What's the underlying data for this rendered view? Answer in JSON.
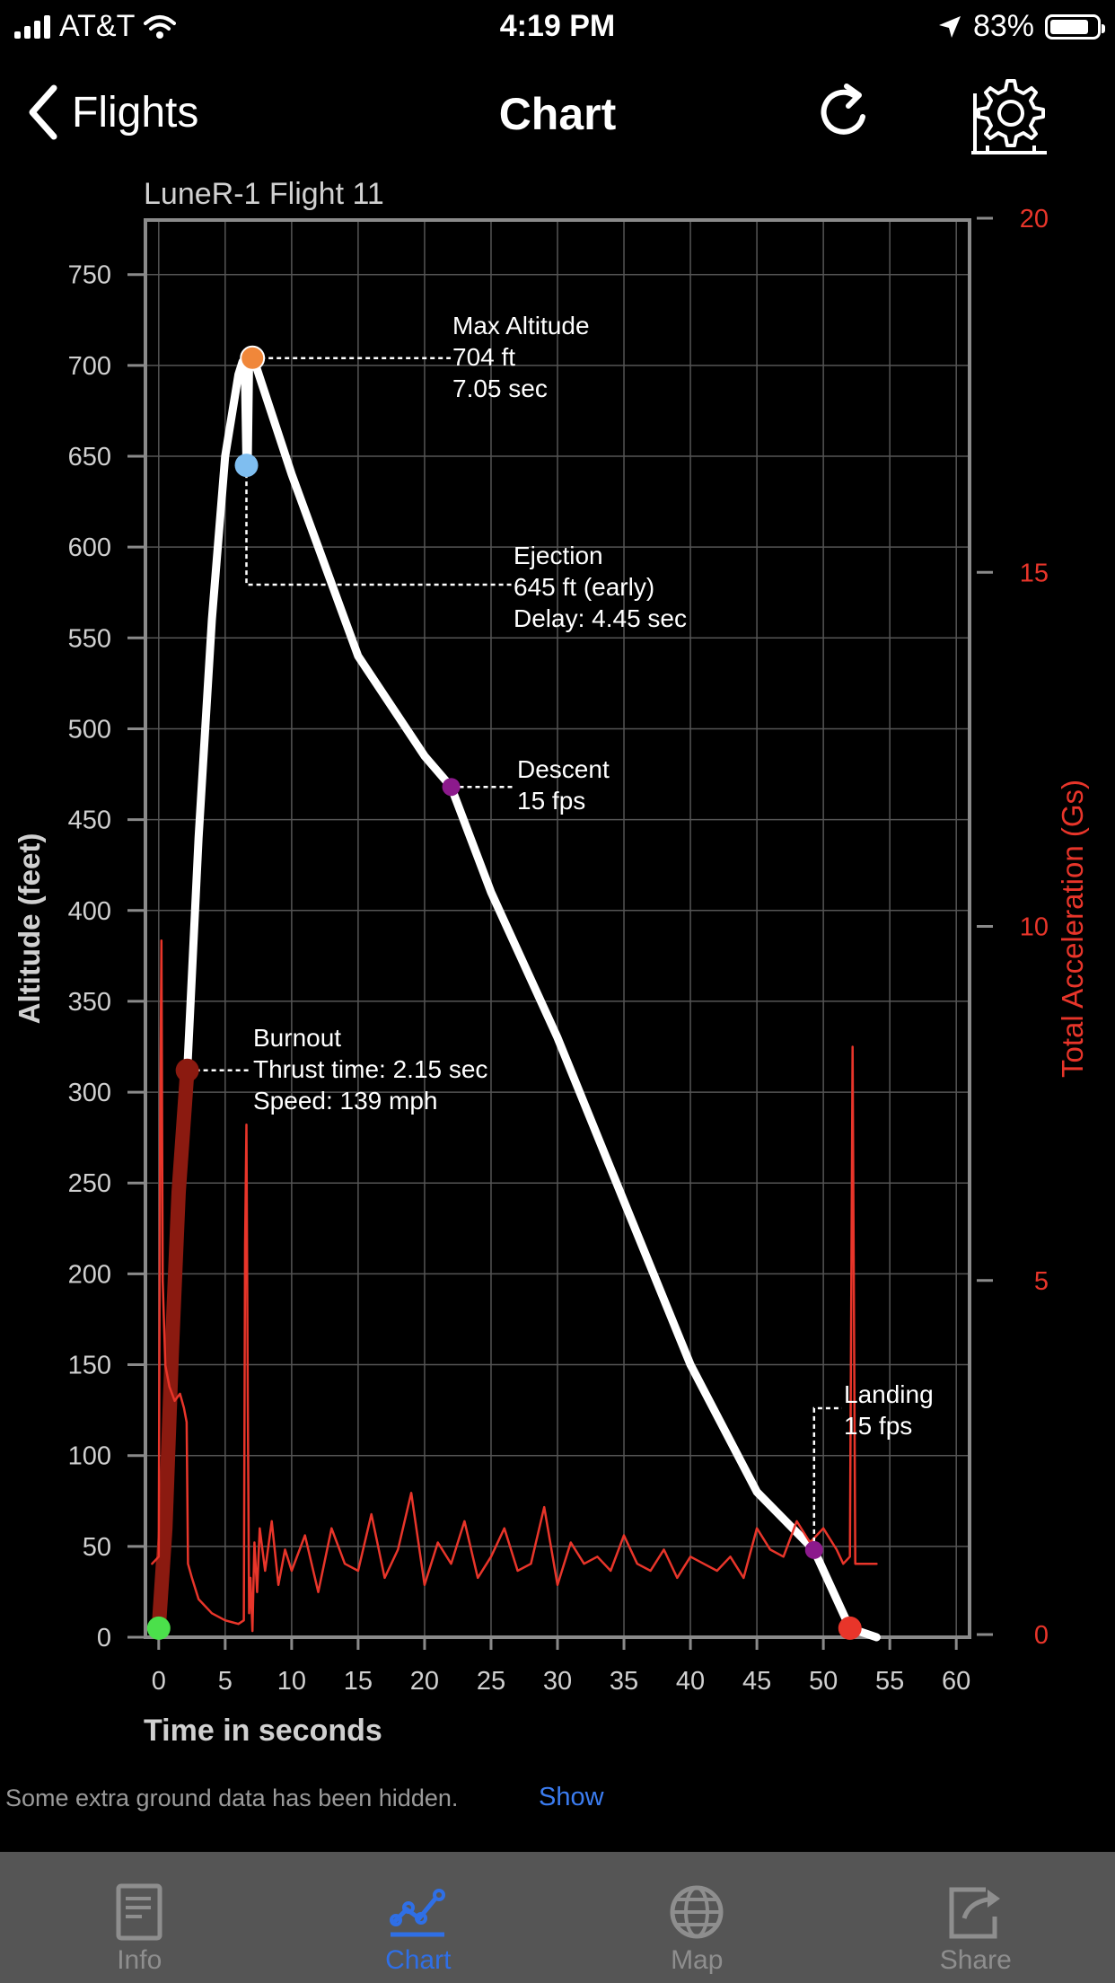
{
  "status_bar": {
    "carrier": "AT&T",
    "time": "4:19 PM",
    "battery": "83%",
    "battery_level": 0.83
  },
  "nav": {
    "back_label": "Flights",
    "title": "Chart"
  },
  "chart_data": {
    "type": "line",
    "title": "LuneR-1 Flight 11",
    "xlabel": "Time in seconds",
    "ylabel": "Altitude (feet)",
    "y2label": "Total Acceleration (Gs)",
    "xlim": [
      -1,
      61
    ],
    "ylim": [
      0,
      780
    ],
    "y2lim": [
      0,
      20
    ],
    "x_ticks": [
      0,
      5,
      10,
      15,
      20,
      25,
      30,
      35,
      40,
      45,
      50,
      55,
      60
    ],
    "y_ticks": [
      0,
      50,
      100,
      150,
      200,
      250,
      300,
      350,
      400,
      450,
      500,
      550,
      600,
      650,
      700,
      750
    ],
    "y2_ticks": [
      0,
      5,
      10,
      15,
      20
    ],
    "grid": true,
    "series": [
      {
        "color": "#ffffff",
        "x": [
          0,
          0.5,
          1,
          1.5,
          2.15,
          3,
          4,
          5,
          6,
          6.3,
          6.5,
          6.6,
          6.7,
          6.8,
          7.05,
          7.3,
          10,
          15,
          20,
          22,
          25,
          30,
          35,
          40,
          45,
          49.3,
          52,
          54
        ],
        "y": [
          5,
          60,
          160,
          245,
          312,
          440,
          560,
          650,
          695,
          702,
          690,
          647,
          647,
          703,
          704,
          700,
          640,
          540,
          485,
          468,
          410,
          330,
          240,
          150,
          80,
          48,
          5,
          0
        ]
      },
      {
        "color": "#8b1a10",
        "x": [
          0,
          0.5,
          1,
          1.5,
          2.15
        ],
        "y": [
          5,
          60,
          160,
          245,
          312
        ]
      },
      {
        "color": "#e8352a",
        "axis": "right",
        "x": [
          -0.5,
          0,
          0.1,
          0.2,
          0.3,
          0.5,
          0.8,
          1.2,
          1.6,
          1.9,
          2.1,
          2.2,
          2.5,
          3,
          4,
          5,
          6,
          6.4,
          6.5,
          6.6,
          6.7,
          6.8,
          6.9,
          7.05,
          7.2,
          7.4,
          7.6,
          8,
          8.5,
          9,
          9.5,
          10,
          11,
          12,
          13,
          14,
          15,
          16,
          17,
          18,
          19,
          20,
          21,
          22,
          23,
          24,
          25,
          26,
          27,
          28,
          29,
          30,
          31,
          32,
          33,
          34,
          35,
          36,
          37,
          38,
          39,
          40,
          41,
          42,
          43,
          44,
          45,
          46,
          47,
          48,
          49,
          50,
          51,
          51.5,
          52,
          52.2,
          52.4,
          52.6,
          53,
          54
        ],
        "y": [
          1,
          1.1,
          7,
          9.8,
          5,
          3.8,
          3.5,
          3.3,
          3.4,
          3.2,
          3.0,
          1.0,
          0.8,
          0.5,
          0.3,
          0.2,
          0.15,
          0.2,
          5.5,
          7.2,
          3.3,
          0.3,
          0.8,
          0.05,
          1.3,
          0.6,
          1.5,
          0.9,
          1.6,
          0.7,
          1.2,
          0.9,
          1.4,
          0.6,
          1.5,
          1.0,
          0.9,
          1.7,
          0.8,
          1.2,
          2.0,
          0.7,
          1.3,
          1.0,
          1.6,
          0.8,
          1.1,
          1.5,
          0.9,
          1.0,
          1.8,
          0.7,
          1.3,
          1.0,
          1.1,
          0.9,
          1.4,
          1.0,
          0.9,
          1.2,
          0.8,
          1.1,
          1.0,
          0.9,
          1.1,
          0.8,
          1.5,
          1.2,
          1.1,
          1.6,
          1.3,
          1.5,
          1.2,
          1.0,
          1.1,
          8.3,
          1.0,
          1.0,
          1.0,
          1.0
        ]
      }
    ],
    "markers": [
      {
        "name": "Liftoff",
        "x": 0,
        "y": 5,
        "color": "#4be04b"
      },
      {
        "name": "Burnout",
        "x": 2.15,
        "y": 312,
        "color": "#8b1a10",
        "label_lines": [
          "Burnout",
          "Thrust time: 2.15 sec",
          "Speed: 139 mph"
        ]
      },
      {
        "name": "Max Altitude",
        "x": 7.05,
        "y": 704,
        "color": "#f0873a",
        "label_lines": [
          "Max Altitude",
          "704 ft",
          "7.05  sec"
        ]
      },
      {
        "name": "Ejection",
        "x": 6.6,
        "y": 645,
        "color": "#7fbef0",
        "label_lines": [
          "Ejection",
          "645 ft (early)",
          "Delay:  4.45 sec"
        ]
      },
      {
        "name": "Descent",
        "x": 22,
        "y": 468,
        "color": "#8c1a8c",
        "label_lines": [
          "Descent",
          "15 fps"
        ]
      },
      {
        "name": "Landing",
        "x": 49.3,
        "y": 48,
        "color": "#8c1a8c",
        "label_lines": [
          "Landing",
          "15 fps"
        ]
      },
      {
        "name": "Landed",
        "x": 52,
        "y": 5,
        "color": "#e8352a"
      }
    ]
  },
  "footer": {
    "note": "Some extra ground data has been hidden.",
    "show_link": "Show"
  },
  "tabs": [
    {
      "label": "Info",
      "icon": "info-icon",
      "active": false
    },
    {
      "label": "Chart",
      "icon": "chart-icon",
      "active": true
    },
    {
      "label": "Map",
      "icon": "globe-icon",
      "active": false
    },
    {
      "label": "Share",
      "icon": "share-icon",
      "active": false
    }
  ]
}
